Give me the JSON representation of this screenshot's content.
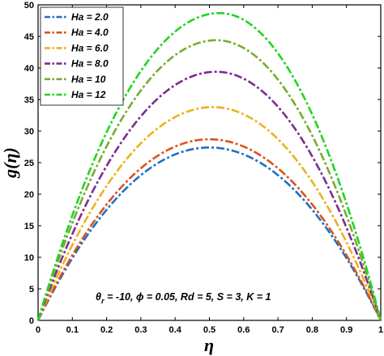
{
  "chart_data": {
    "type": "line",
    "xlabel": "η",
    "ylabel": "g(η)",
    "xlim": [
      0,
      1
    ],
    "ylim": [
      0,
      50
    ],
    "xticks": [
      "0",
      "0.1",
      "0.2",
      "0.3",
      "0.4",
      "0.5",
      "0.6",
      "0.7",
      "0.8",
      "0.9",
      "1"
    ],
    "yticks": [
      "0",
      "5",
      "10",
      "15",
      "20",
      "25",
      "30",
      "35",
      "40",
      "45",
      "50"
    ],
    "grid": false,
    "legend_position": "top-left",
    "line_style": "dash-dot",
    "annotation": {
      "prefix": "θ",
      "sub": "r",
      "rest": " = -10, ϕ = 0.05, Rd = 5, S = 3, K = 1"
    },
    "series": [
      {
        "name": "Ha = 2.0",
        "color": "#1f6fc4",
        "peak_x": 0.5,
        "peak_y": 27.4,
        "x": [
          0,
          0.1,
          0.2,
          0.3,
          0.4,
          0.5,
          0.6,
          0.7,
          0.8,
          0.9,
          1
        ],
        "y": [
          0,
          9.9,
          17.5,
          23.0,
          26.3,
          27.4,
          26.3,
          23.0,
          17.5,
          9.9,
          0
        ]
      },
      {
        "name": "Ha = 4.0",
        "color": "#d9541b",
        "peak_x": 0.5,
        "peak_y": 28.7,
        "x": [
          0,
          0.1,
          0.2,
          0.3,
          0.4,
          0.5,
          0.6,
          0.7,
          0.8,
          0.9,
          1
        ],
        "y": [
          0,
          10.3,
          18.4,
          24.1,
          27.6,
          28.7,
          27.6,
          24.1,
          18.4,
          10.3,
          0
        ]
      },
      {
        "name": "Ha = 6.0",
        "color": "#edb11f",
        "peak_x": 0.51,
        "peak_y": 33.8,
        "x": [
          0,
          0.1,
          0.2,
          0.3,
          0.4,
          0.5,
          0.6,
          0.7,
          0.8,
          0.9,
          1
        ],
        "y": [
          0,
          11.8,
          21.4,
          28.4,
          32.6,
          33.8,
          32.6,
          28.6,
          21.9,
          12.2,
          0
        ]
      },
      {
        "name": "Ha = 8.0",
        "color": "#7d2d8f",
        "peak_x": 0.52,
        "peak_y": 39.4,
        "x": [
          0,
          0.1,
          0.2,
          0.3,
          0.4,
          0.5,
          0.6,
          0.7,
          0.8,
          0.9,
          1
        ],
        "y": [
          0,
          13.6,
          24.8,
          33.1,
          38.2,
          39.4,
          38.4,
          33.8,
          26.0,
          14.5,
          0
        ]
      },
      {
        "name": "Ha = 10",
        "color": "#77ac30",
        "peak_x": 0.52,
        "peak_y": 44.4,
        "x": [
          0,
          0.1,
          0.2,
          0.3,
          0.4,
          0.5,
          0.6,
          0.7,
          0.8,
          0.9,
          1
        ],
        "y": [
          0,
          15.4,
          28.0,
          37.5,
          43.0,
          44.4,
          43.3,
          38.3,
          29.6,
          16.6,
          0
        ]
      },
      {
        "name": "Ha = 12",
        "color": "#22d422",
        "peak_x": 0.53,
        "peak_y": 48.7,
        "x": [
          0,
          0.1,
          0.2,
          0.3,
          0.4,
          0.5,
          0.6,
          0.7,
          0.8,
          0.9,
          1
        ],
        "y": [
          0,
          16.9,
          30.7,
          41.0,
          47.1,
          48.6,
          47.6,
          42.4,
          33.0,
          18.6,
          0
        ]
      }
    ]
  }
}
